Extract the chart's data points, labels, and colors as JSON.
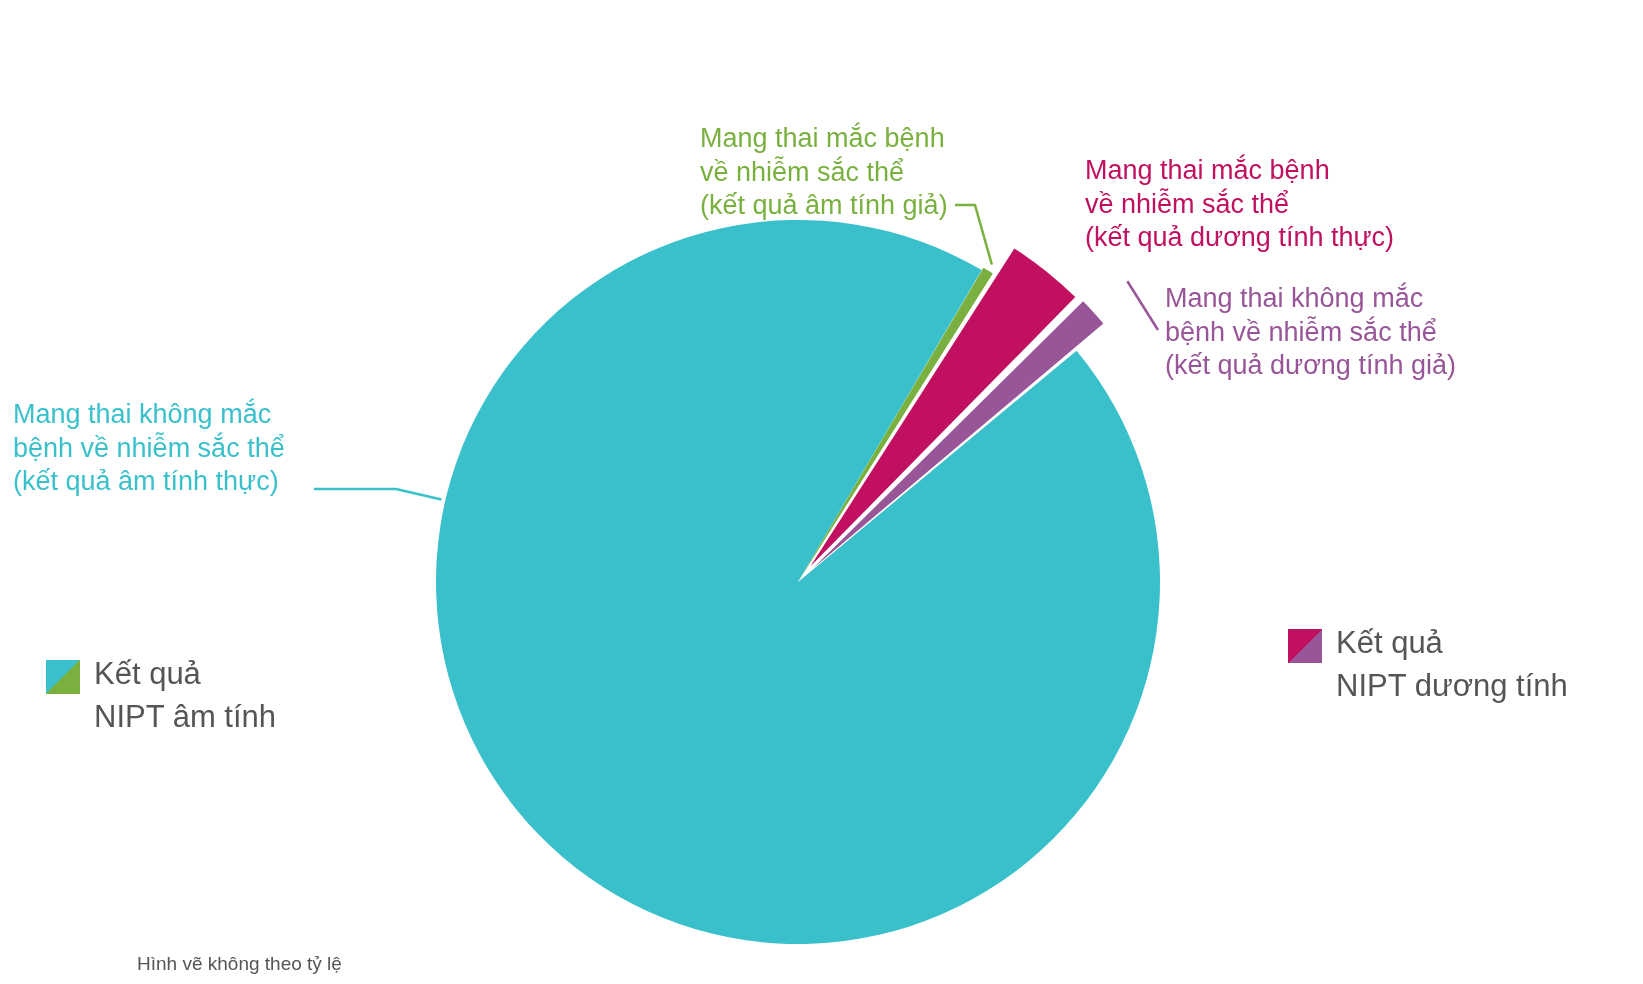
{
  "chart_data": {
    "type": "pie",
    "categories": [
      "Mang thai không mắc\nbệnh về nhiễm sắc thể\n(kết quả âm tính thực)",
      "Mang thai mắc bệnh\nvề nhiễm sắc thể\n(kết quả âm tính giả)",
      "Mang thai mắc bệnh\nvề nhiễm sắc thể\n(kết quả dương tính thực)",
      "Mang thai không mắc\nbệnh về nhiễm sắc thể\n(kết quả dương tính giả)"
    ],
    "values": [
      94.5,
      0.5,
      3.5,
      1.5
    ],
    "colors": [
      "#3ac0cb",
      "#7ab03f",
      "#c0105f",
      "#985598"
    ],
    "annotations": [
      "Kết quả\nNIPT âm tính",
      "Kết quả\nNIPT dương tính",
      "Hình vẽ không theo tỷ lệ"
    ]
  }
}
